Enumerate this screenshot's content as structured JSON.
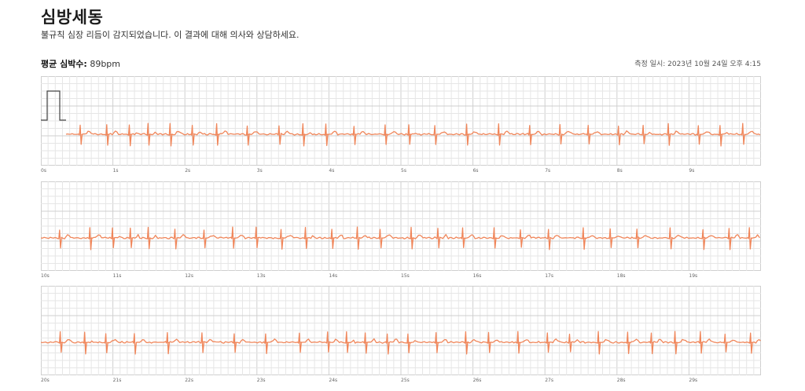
{
  "header": {
    "title": "심방세동",
    "subtitle": "불규칙 심장 리듬이 감지되었습니다. 이 결과에 대해 의사와 상담하세요."
  },
  "summary": {
    "avg_label": "평균 심박수:",
    "avg_value": "89bpm",
    "measured": "측정 일시: 2023년 10월 24일 오후 4:15"
  },
  "colors": {
    "trace": "#f0865a",
    "grid_minor": "#e6e6e6",
    "grid_major": "#cfcfcf",
    "calibration": "#444444"
  },
  "strips": [
    {
      "ticks": [
        "0s",
        "1s",
        "2s",
        "3s",
        "4s",
        "5s",
        "6s",
        "7s",
        "8s",
        "9s"
      ]
    },
    {
      "ticks": [
        "10s",
        "11s",
        "12s",
        "13s",
        "14s",
        "15s",
        "16s",
        "17s",
        "18s",
        "19s"
      ]
    },
    {
      "ticks": [
        "20s",
        "21s",
        "22s",
        "23s",
        "24s",
        "25s",
        "26s",
        "27s",
        "28s",
        "29s"
      ]
    }
  ]
}
